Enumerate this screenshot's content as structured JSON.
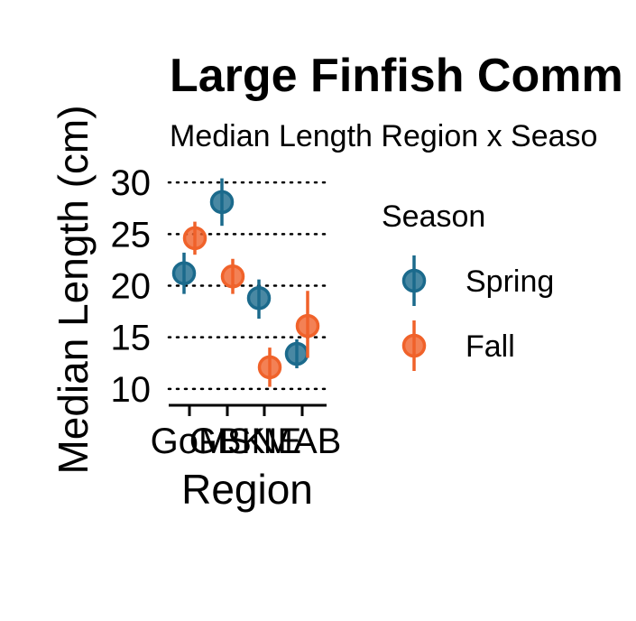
{
  "chart_data": {
    "type": "scatter",
    "title": "Large Finfish Comm",
    "subtitle": "Median Length Region x Seaso",
    "xlabel": "Region",
    "ylabel": "Median Length (cm)",
    "categories": [
      "GoM",
      "GBK",
      "SNE",
      "MAB"
    ],
    "yticks": [
      10,
      15,
      20,
      25,
      30
    ],
    "ylim": [
      8.5,
      31.5
    ],
    "grid": "horizontal-dotted",
    "legend": {
      "title": "Season",
      "position": "right"
    },
    "series": [
      {
        "name": "Spring",
        "color": "#1b6a8c",
        "values": [
          21.2,
          28.1,
          18.8,
          13.4
        ],
        "lower": [
          19.2,
          25.8,
          16.8,
          12.0
        ],
        "upper": [
          23.2,
          30.4,
          20.6,
          14.8
        ]
      },
      {
        "name": "Fall",
        "color": "#f0622a",
        "values": [
          24.6,
          20.9,
          12.1,
          16.1
        ],
        "lower": [
          23.0,
          19.2,
          10.2,
          13.0
        ],
        "upper": [
          26.2,
          22.6,
          14.0,
          19.5
        ]
      }
    ]
  }
}
